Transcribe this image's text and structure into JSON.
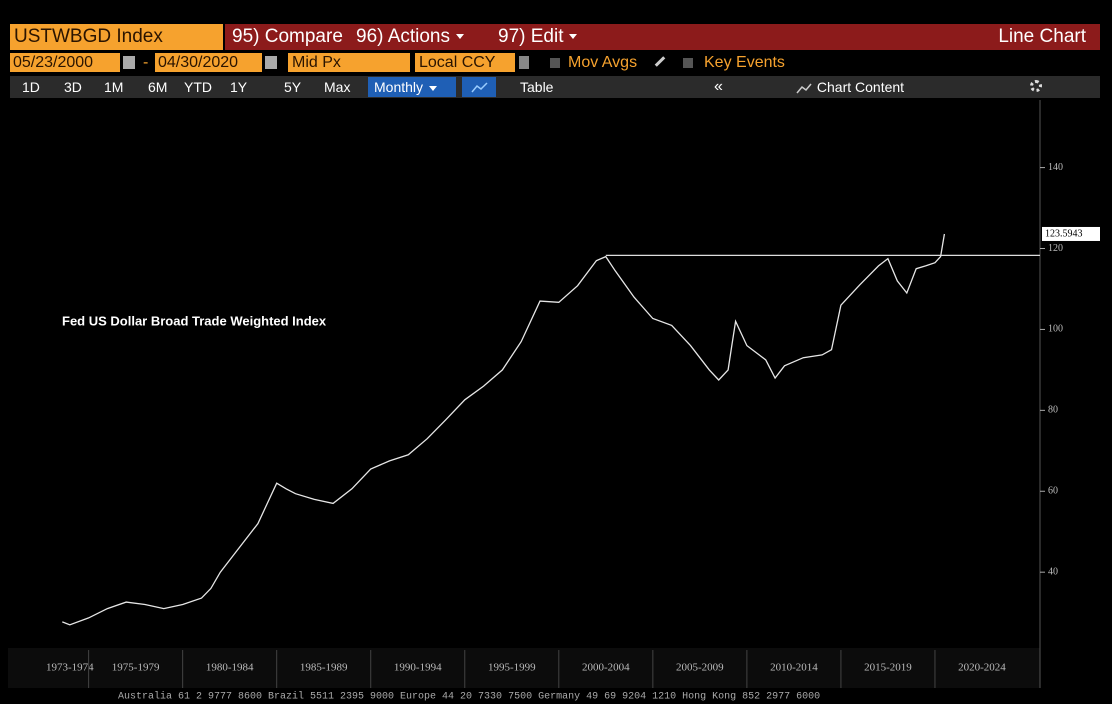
{
  "toolbar": {
    "security": "USTWBGD Index",
    "buttons": [
      "95) Compare",
      "96) Actions",
      "97) Edit"
    ],
    "view": "Line Chart"
  },
  "settings": {
    "start_date": "05/23/2000",
    "separator": "-",
    "end_date": "04/30/2020",
    "price": "Mid Px",
    "currency": "Local CCY",
    "mov_avgs": "Mov Avgs",
    "key_events": "Key Events"
  },
  "ranges": [
    "1D",
    "3D",
    "1M",
    "6M",
    "YTD",
    "1Y",
    "5Y",
    "Max"
  ],
  "frequency": "Monthly",
  "table": "Table",
  "collapse": "«",
  "chart_content": "Chart Content",
  "chart_data": {
    "type": "line",
    "annotation": "Fed US Dollar Broad Trade Weighted Index",
    "x": [
      1973.6,
      1974,
      1975,
      1976,
      1977,
      1978,
      1979,
      1980,
      1981,
      1981.5,
      1982,
      1983,
      1984,
      1984.5,
      1985,
      1985.5,
      1986,
      1987,
      1988,
      1989,
      1990,
      1991,
      1992,
      1993,
      1994,
      1995,
      1996,
      1997,
      1998,
      1999,
      2000,
      2001,
      2002,
      2002.5,
      2003,
      2004,
      2005,
      2006,
      2007,
      2008,
      2008.5,
      2009,
      2009.2,
      2009.4,
      2010,
      2011,
      2011.5,
      2012,
      2013,
      2014,
      2014.5,
      2015,
      2016,
      2017,
      2017.5,
      2018,
      2018.5,
      2019,
      2019.5,
      2020,
      2020.3,
      2020.5
    ],
    "series": [
      {
        "color": "#e6e6e6",
        "values": [
          27.7,
          27,
          28.7,
          31,
          32.6,
          32,
          31,
          32,
          33.6,
          36,
          40,
          46,
          52,
          57,
          62,
          60.6,
          59.4,
          58,
          57,
          60.6,
          65.5,
          67.5,
          69,
          73,
          77.7,
          82.6,
          86,
          90,
          97,
          107,
          106.7,
          110.8,
          117,
          118,
          114.5,
          108,
          102.7,
          101,
          96,
          90,
          87.5,
          90,
          96,
          102,
          96,
          92.5,
          88,
          91,
          93,
          93.7,
          95,
          106,
          111,
          115.7,
          117.5,
          112,
          109,
          115,
          115.7,
          116.5,
          118,
          123.5943
        ]
      }
    ],
    "hline": {
      "y": 118.3,
      "x_start": 2002.5
    },
    "xlim": [
      1973,
      2025
    ],
    "xticks": [
      {
        "value": 1973,
        "label": "1973-1974"
      },
      {
        "value": 1975,
        "label": "1975-1979"
      },
      {
        "value": 1980,
        "label": "1980-1984"
      },
      {
        "value": 1985,
        "label": "1985-1989"
      },
      {
        "value": 1990,
        "label": "1990-1994"
      },
      {
        "value": 1995,
        "label": "1995-1999"
      },
      {
        "value": 2000,
        "label": "2000-2004"
      },
      {
        "value": 2005,
        "label": "2005-2009"
      },
      {
        "value": 2010,
        "label": "2010-2014"
      },
      {
        "value": 2015,
        "label": "2015-2019"
      },
      {
        "value": 2020,
        "label": "2020-2024"
      }
    ],
    "ylim": [
      22,
      153
    ],
    "yticks": [
      40,
      60,
      80,
      100,
      120,
      140
    ],
    "y_axis_side": "right"
  },
  "footer": "Australia 61 2 9777 8600 Brazil 5511 2395 9000 Europe 44 20 7330 7500 Germany 49 69 9204 1210 Hong Kong 852 2977 6000"
}
